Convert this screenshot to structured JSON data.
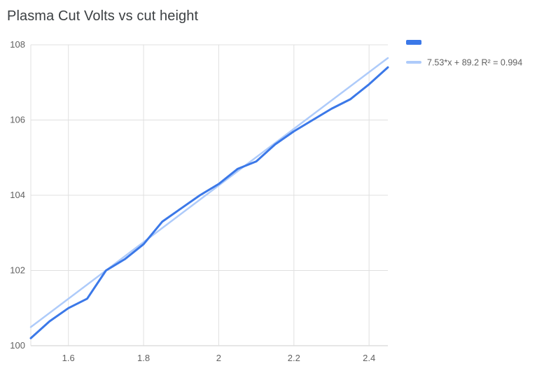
{
  "chart_data": {
    "type": "line",
    "title": "Plasma Cut Volts vs cut height",
    "x": [
      1.5,
      1.55,
      1.6,
      1.65,
      1.7,
      1.75,
      1.8,
      1.85,
      1.9,
      1.95,
      2.0,
      2.05,
      2.1,
      2.15,
      2.2,
      2.25,
      2.3,
      2.35,
      2.4,
      2.45
    ],
    "series": [
      {
        "name": "",
        "color": "#3b78e8",
        "width": 3,
        "values": [
          100.2,
          100.65,
          101.0,
          101.25,
          102.0,
          102.3,
          102.7,
          103.3,
          103.65,
          104.0,
          104.3,
          104.7,
          104.9,
          105.35,
          105.7,
          106.0,
          106.3,
          106.55,
          106.95,
          107.4
        ]
      },
      {
        "name": "7.53*x + 89.2 R² = 0.994",
        "color": "#aecbfa",
        "width": 2.5,
        "trend": {
          "slope": 7.53,
          "intercept": 89.2
        }
      }
    ],
    "xlim": [
      1.5,
      2.45
    ],
    "ylim": [
      100,
      108
    ],
    "x_ticks": [
      1.6,
      1.8,
      2,
      2.2,
      2.4
    ],
    "x_tick_labels": [
      "1.6",
      "1.8",
      "2",
      "2.2",
      "2.4"
    ],
    "y_ticks": [
      100,
      102,
      104,
      106,
      108
    ],
    "y_tick_labels": [
      "100",
      "102",
      "104",
      "106",
      "108"
    ],
    "grid": true,
    "legend_position": "right",
    "colors": {
      "grid": "#e0e0e0",
      "axis_line": "#cccccc",
      "axis_text": "#616161",
      "legend_text": "#616161",
      "title": "#3c4043",
      "background": "#ffffff"
    }
  }
}
